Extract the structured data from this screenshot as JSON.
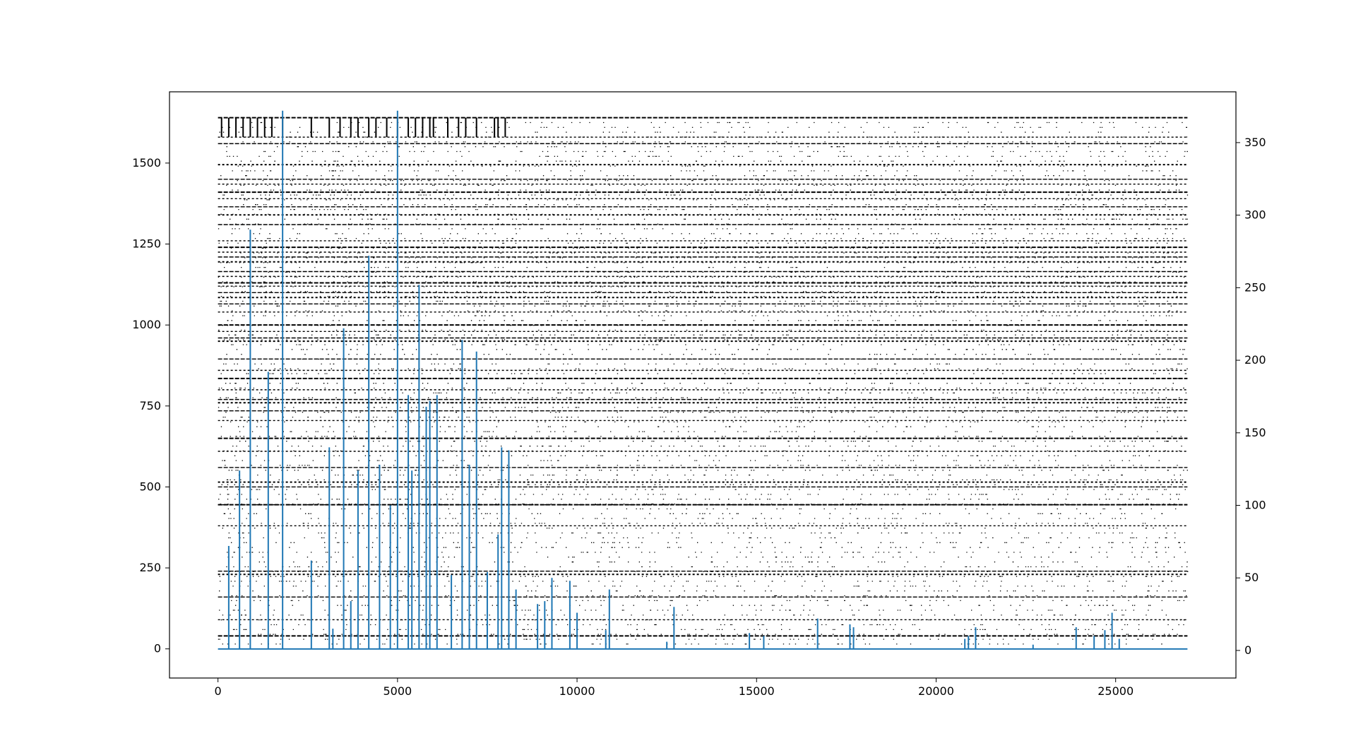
{
  "chart_data": {
    "type": "scatter",
    "title": "",
    "xlabel": "",
    "ylabel": "",
    "ylabel_right": "",
    "xlim": [
      -1350,
      28350
    ],
    "ylim": [
      -90,
      1720
    ],
    "ylim_right": [
      -19,
      385
    ],
    "x_ticks": [
      0,
      5000,
      10000,
      15000,
      20000,
      25000
    ],
    "y_ticks": [
      0,
      250,
      500,
      750,
      1000,
      1250,
      1500
    ],
    "y_ticks_right": [
      0,
      50,
      100,
      150,
      200,
      250,
      300,
      350
    ],
    "grid": false,
    "legend": "none",
    "colors": {
      "raster": "#000000",
      "rate_line": "#1f77b4",
      "axes": "#000000"
    },
    "raster": {
      "x_range": [
        0,
        27000
      ],
      "neuron_range": [
        0,
        1640
      ],
      "dense_rows": [
        1640,
        1580,
        1560,
        1495,
        1450,
        1435,
        1410,
        1390,
        1365,
        1340,
        1310,
        1260,
        1240,
        1225,
        1210,
        1195,
        1165,
        1150,
        1130,
        1120,
        1100,
        1085,
        1065,
        1040,
        1000,
        980,
        960,
        950,
        895,
        860,
        835,
        800,
        770,
        760,
        735,
        705,
        650,
        610,
        560,
        515,
        500,
        445,
        445,
        380,
        240,
        230,
        160,
        90,
        40
      ],
      "vertical_bursts": [
        100,
        300,
        500,
        700,
        900,
        1100,
        1300,
        1500,
        1800,
        2600,
        3100,
        3400,
        3700,
        3900,
        4200,
        4400,
        4700,
        5000,
        5300,
        5500,
        5700,
        5900,
        6000,
        6400,
        6700,
        6900,
        7200,
        7700,
        7800,
        8000
      ]
    },
    "rate_series": {
      "name": "",
      "baseline": 1,
      "peaks": [
        {
          "x": 300,
          "y": 72
        },
        {
          "x": 600,
          "y": 124
        },
        {
          "x": 900,
          "y": 290
        },
        {
          "x": 1400,
          "y": 192
        },
        {
          "x": 1800,
          "y": 372
        },
        {
          "x": 2600,
          "y": 62
        },
        {
          "x": 3100,
          "y": 140
        },
        {
          "x": 3200,
          "y": 15
        },
        {
          "x": 3500,
          "y": 222
        },
        {
          "x": 3700,
          "y": 34
        },
        {
          "x": 3900,
          "y": 124
        },
        {
          "x": 4200,
          "y": 272
        },
        {
          "x": 4500,
          "y": 128
        },
        {
          "x": 4800,
          "y": 100
        },
        {
          "x": 5000,
          "y": 372
        },
        {
          "x": 5300,
          "y": 176
        },
        {
          "x": 5400,
          "y": 124
        },
        {
          "x": 5600,
          "y": 252
        },
        {
          "x": 5800,
          "y": 168
        },
        {
          "x": 5900,
          "y": 172
        },
        {
          "x": 6100,
          "y": 176
        },
        {
          "x": 6500,
          "y": 52
        },
        {
          "x": 6800,
          "y": 214
        },
        {
          "x": 7000,
          "y": 128
        },
        {
          "x": 7200,
          "y": 206
        },
        {
          "x": 7500,
          "y": 54
        },
        {
          "x": 7800,
          "y": 80
        },
        {
          "x": 7900,
          "y": 140
        },
        {
          "x": 8100,
          "y": 138
        },
        {
          "x": 8300,
          "y": 42
        },
        {
          "x": 8900,
          "y": 32
        },
        {
          "x": 9100,
          "y": 34
        },
        {
          "x": 9300,
          "y": 50
        },
        {
          "x": 9800,
          "y": 48
        },
        {
          "x": 10000,
          "y": 26
        },
        {
          "x": 10800,
          "y": 14
        },
        {
          "x": 10900,
          "y": 42
        },
        {
          "x": 12500,
          "y": 6
        },
        {
          "x": 12700,
          "y": 30
        },
        {
          "x": 14800,
          "y": 12
        },
        {
          "x": 15200,
          "y": 10
        },
        {
          "x": 16700,
          "y": 22
        },
        {
          "x": 17600,
          "y": 18
        },
        {
          "x": 17700,
          "y": 16
        },
        {
          "x": 20800,
          "y": 8
        },
        {
          "x": 20900,
          "y": 10
        },
        {
          "x": 21100,
          "y": 16
        },
        {
          "x": 22700,
          "y": 4
        },
        {
          "x": 23900,
          "y": 16
        },
        {
          "x": 24400,
          "y": 10
        },
        {
          "x": 24700,
          "y": 14
        },
        {
          "x": 24900,
          "y": 26
        },
        {
          "x": 25100,
          "y": 8
        }
      ]
    }
  }
}
